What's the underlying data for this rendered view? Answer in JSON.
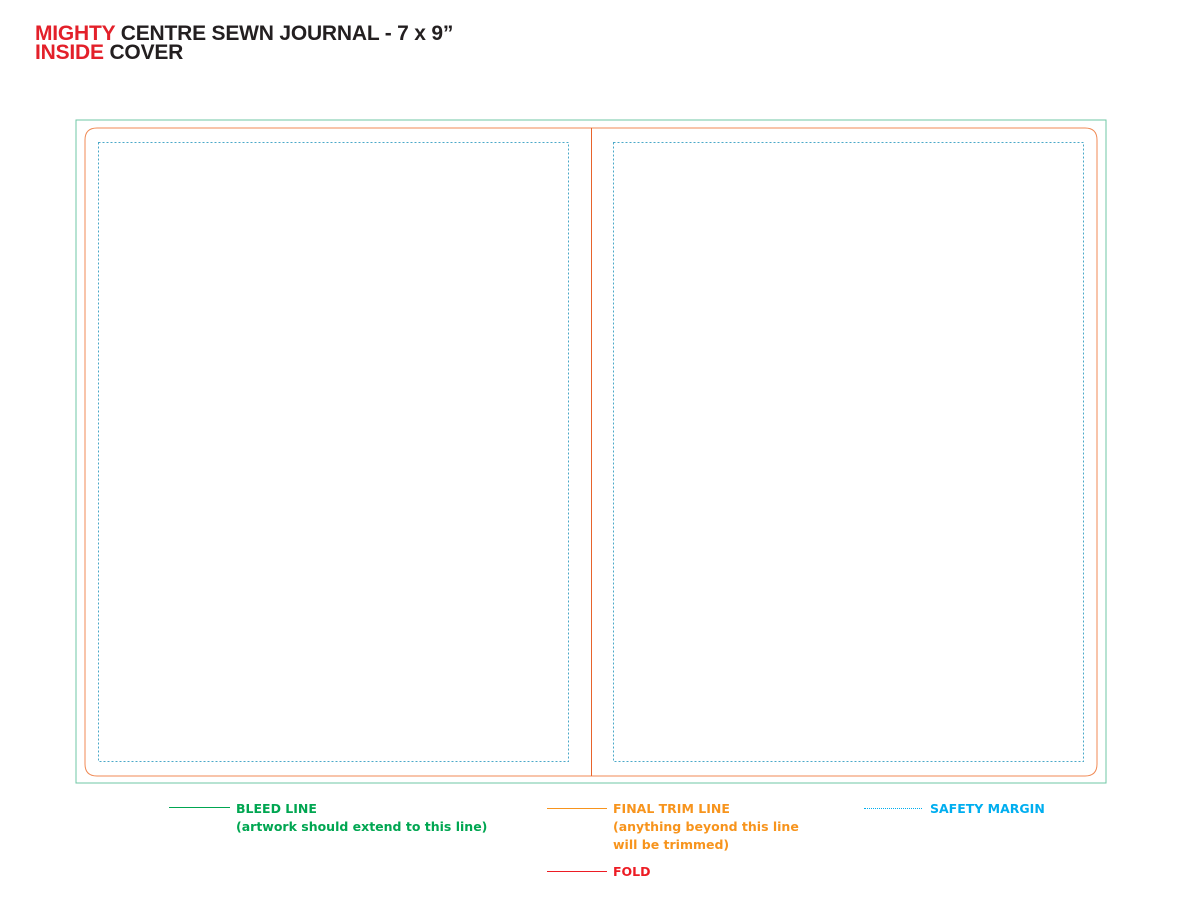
{
  "title": {
    "line1_red": "MIGHTY",
    "line1_dark": "CENTRE SEWN JOURNAL - 7 x 9”",
    "line2_red": "INSIDE",
    "line2_dark": "COVER"
  },
  "legend": {
    "bleed": {
      "label": "BLEED LINE",
      "note": "(artwork should extend to this line)"
    },
    "trim": {
      "label": "FINAL TRIM LINE",
      "note1": "(anything beyond this line",
      "note2": "will be trimmed)"
    },
    "safety": {
      "label": "SAFETY MARGIN"
    },
    "fold": {
      "label": "FOLD"
    }
  },
  "colors": {
    "bleed": "#00a651",
    "trim": "#f7941d",
    "safety": "#00aeef",
    "fold": "#ed1c24",
    "title_red": "#e3202a",
    "title_dark": "#231f20",
    "bleed_box": "#6fc7a5",
    "trim_box": "#f08a55",
    "safety_box": "#4aa8c8",
    "fold_line": "#e8632b"
  }
}
